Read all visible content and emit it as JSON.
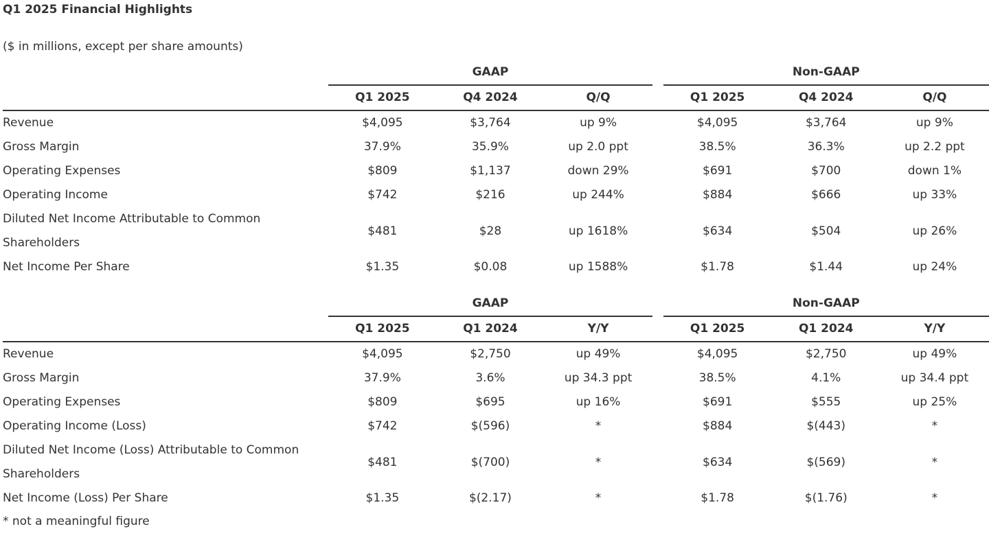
{
  "title": "Q1 2025 Financial Highlights",
  "subtitle": "($ in millions, except per share amounts)",
  "tables": [
    {
      "groups": [
        "GAAP",
        "Non-GAAP"
      ],
      "columns": [
        "Q1 2025",
        "Q4 2024",
        "Q/Q",
        "Q1 2025",
        "Q4 2024",
        "Q/Q"
      ],
      "rows": [
        [
          "Revenue",
          "$4,095",
          "$3,764",
          "up 9%",
          "$4,095",
          "$3,764",
          "up 9%"
        ],
        [
          "Gross Margin",
          "37.9%",
          "35.9%",
          "up 2.0 ppt",
          "38.5%",
          "36.3%",
          "up 2.2 ppt"
        ],
        [
          "Operating Expenses",
          "$809",
          "$1,137",
          "down 29%",
          "$691",
          "$700",
          "down 1%"
        ],
        [
          "Operating Income",
          "$742",
          "$216",
          "up 244%",
          "$884",
          "$666",
          "up 33%"
        ],
        [
          "Diluted Net Income Attributable to Common Shareholders",
          "$481",
          "$28",
          "up 1618%",
          "$634",
          "$504",
          "up 26%"
        ],
        [
          "Net Income Per Share",
          "$1.35",
          "$0.08",
          "up 1588%",
          "$1.78",
          "$1.44",
          "up 24%"
        ]
      ]
    },
    {
      "groups": [
        "GAAP",
        "Non-GAAP"
      ],
      "columns": [
        "Q1 2025",
        "Q1 2024",
        "Y/Y",
        "Q1 2025",
        "Q1 2024",
        "Y/Y"
      ],
      "rows": [
        [
          "Revenue",
          "$4,095",
          "$2,750",
          "up 49%",
          "$4,095",
          "$2,750",
          "up 49%"
        ],
        [
          "Gross Margin",
          "37.9%",
          "3.6%",
          "up 34.3 ppt",
          "38.5%",
          "4.1%",
          "up 34.4 ppt"
        ],
        [
          "Operating Expenses",
          "$809",
          "$695",
          "up 16%",
          "$691",
          "$555",
          "up 25%"
        ],
        [
          "Operating Income (Loss)",
          "$742",
          "$(596)",
          "*",
          "$884",
          "$(443)",
          "*"
        ],
        [
          "Diluted Net Income (Loss) Attributable to Common Shareholders",
          "$481",
          "$(700)",
          "*",
          "$634",
          "$(569)",
          "*"
        ],
        [
          "Net Income (Loss) Per Share",
          "$1.35",
          "$(2.17)",
          "*",
          "$1.78",
          "$(1.76)",
          "*"
        ]
      ]
    }
  ],
  "footnote": "* not a meaningful figure"
}
